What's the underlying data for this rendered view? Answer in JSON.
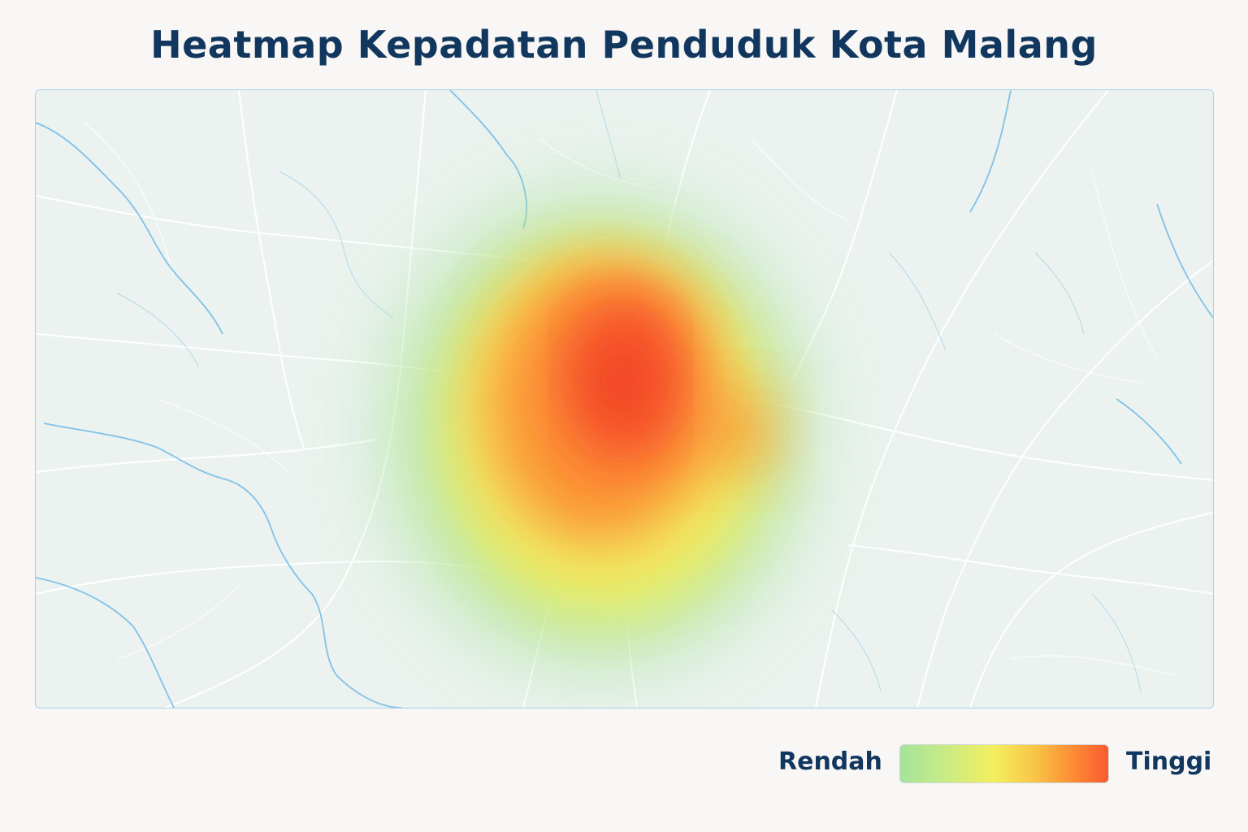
{
  "title": "Heatmap Kepadatan Penduduk Kota Malang",
  "legend": {
    "low_label": "Rendah",
    "high_label": "Tinggi",
    "colors": [
      "#a4e39a",
      "#f4ef5e",
      "#fc8f36",
      "#fa5a2f"
    ]
  },
  "map": {
    "background_color": "#ebf2ef",
    "river_color": "#6fb9e6",
    "road_color": "#ffffff"
  }
}
